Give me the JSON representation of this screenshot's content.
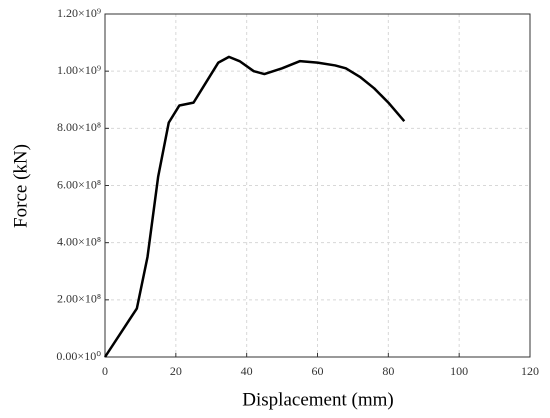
{
  "chart_data": {
    "type": "line",
    "x_label": "Displacement (mm)",
    "y_label": "Force (kN)",
    "xlim": [
      0,
      120
    ],
    "xticks": [
      0,
      20,
      40,
      60,
      80,
      100,
      120
    ],
    "ylim": [
      0,
      1200000000
    ],
    "yticks": [
      {
        "value": 0,
        "label": "0.00×10⁰"
      },
      {
        "value": 200000000,
        "label": "2.00×10⁸"
      },
      {
        "value": 400000000,
        "label": "4.00×10⁸"
      },
      {
        "value": 600000000,
        "label": "6.00×10⁸"
      },
      {
        "value": 800000000,
        "label": "8.00×10⁸"
      },
      {
        "value": 1000000000,
        "label": "1.00×10⁹"
      },
      {
        "value": 1200000000,
        "label": "1.20×10⁹"
      }
    ],
    "grid": true,
    "series": [
      {
        "color": "#000000",
        "x": [
          0,
          9,
          12,
          15,
          18,
          21,
          25,
          28,
          32,
          35,
          38,
          42,
          45,
          50,
          55,
          60,
          65,
          68,
          72,
          76,
          80,
          84.5
        ],
        "values": [
          0,
          170000000,
          350000000,
          630000000,
          820000000,
          880000000,
          890000000,
          950000000,
          1030000000,
          1050000000,
          1035000000,
          1000000000,
          990000000,
          1010000000,
          1035000000,
          1030000000,
          1020000000,
          1010000000,
          980000000,
          940000000,
          890000000,
          825000000
        ]
      }
    ]
  }
}
